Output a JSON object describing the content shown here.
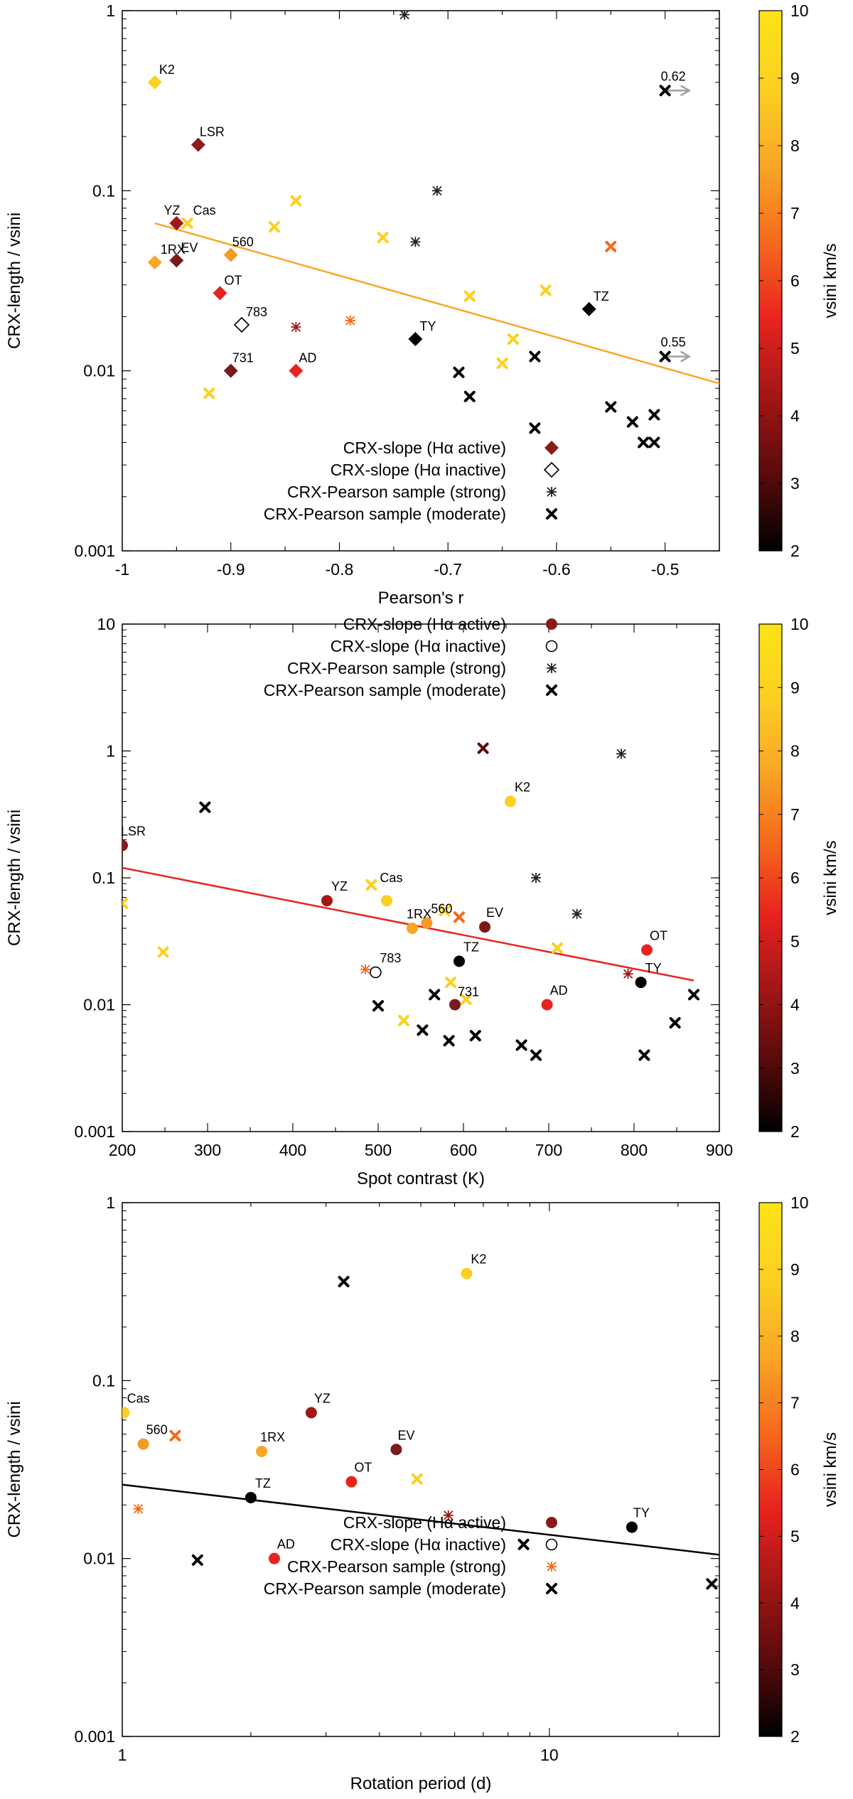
{
  "colorbar": {
    "label": "vsini km/s",
    "min": 2,
    "max": 10,
    "ticks": [
      "2",
      "3",
      "4",
      "5",
      "6",
      "7",
      "8",
      "9",
      "10"
    ],
    "stops": [
      "#000000",
      "#5a0b0b",
      "#a31616",
      "#e8231f",
      "#f56a1d",
      "#f9a726",
      "#fbd022",
      "#fde316"
    ]
  },
  "legend": {
    "active": "CRX-slope (Hα active)",
    "inactive": "CRX-slope (Hα inactive)",
    "strong": "CRX-Pearson sample (strong)",
    "moderate": "CRX-Pearson sample (moderate)"
  },
  "chart_data": [
    {
      "type": "scatter",
      "xlabel": "Pearson's r",
      "ylabel": "CRX-length / vsini",
      "xscale": "linear",
      "yscale": "log",
      "xlim": [
        -1,
        -0.45
      ],
      "ylim": [
        0.001,
        1
      ],
      "xticks": [
        {
          "v": -1,
          "t": "-1"
        },
        {
          "v": -0.9,
          "t": "-0.9"
        },
        {
          "v": -0.8,
          "t": "-0.8"
        },
        {
          "v": -0.7,
          "t": "-0.7"
        },
        {
          "v": -0.6,
          "t": "-0.6"
        },
        {
          "v": -0.5,
          "t": "-0.5"
        }
      ],
      "yticks": [
        {
          "v": 0.001,
          "t": "0.001"
        },
        {
          "v": 0.01,
          "t": "0.01"
        },
        {
          "v": 0.1,
          "t": "0.1"
        },
        {
          "v": 1,
          "t": "1"
        }
      ],
      "legend_position": "bottom-center",
      "fit": {
        "color": "#f9a726",
        "x": [
          -0.97,
          -0.45
        ],
        "y": [
          0.066,
          0.0085
        ]
      },
      "points": [
        {
          "m": "diamond",
          "x": -0.97,
          "y": 0.4,
          "c": "#fbd022",
          "label": "K2",
          "dx": 6,
          "dy": -12
        },
        {
          "m": "diamond",
          "x": -0.93,
          "y": 0.18,
          "c": "#8b1a1a",
          "label": "LSR",
          "dx": 2,
          "dy": -12
        },
        {
          "m": "diamond",
          "x": -0.95,
          "y": 0.066,
          "c": "#a31616",
          "label": "YZ",
          "dx": -18,
          "dy": -12
        },
        {
          "m": "x",
          "x": -0.94,
          "y": 0.066,
          "c": "#fbd022",
          "label": "Cas",
          "dx": 8,
          "dy": -12
        },
        {
          "m": "diamond",
          "x": -0.97,
          "y": 0.04,
          "c": "#f9a726",
          "label": "1RX",
          "dx": 8,
          "dy": -12
        },
        {
          "m": "diamond",
          "x": -0.95,
          "y": 0.041,
          "c": "#7a1a1a",
          "label": "EV",
          "dx": 6,
          "dy": -12
        },
        {
          "m": "diamond",
          "x": -0.9,
          "y": 0.044,
          "c": "#f59a26",
          "label": "560",
          "dx": 2,
          "dy": -12
        },
        {
          "m": "diamond",
          "x": -0.91,
          "y": 0.027,
          "c": "#e8231f",
          "label": "OT",
          "dx": 6,
          "dy": -12
        },
        {
          "m": "diamond-open",
          "x": -0.89,
          "y": 0.018,
          "c": "#000000",
          "label": "783",
          "dx": 6,
          "dy": -12
        },
        {
          "m": "diamond",
          "x": -0.9,
          "y": 0.01,
          "c": "#7a1a1a",
          "label": "731",
          "dx": 2,
          "dy": -12
        },
        {
          "m": "diamond",
          "x": -0.84,
          "y": 0.01,
          "c": "#e8231f",
          "label": "AD",
          "dx": 4,
          "dy": -12
        },
        {
          "m": "diamond",
          "x": -0.73,
          "y": 0.015,
          "c": "#000000",
          "label": "TY",
          "dx": 6,
          "dy": -12
        },
        {
          "m": "diamond",
          "x": -0.57,
          "y": 0.022,
          "c": "#000000",
          "label": "TZ",
          "dx": 6,
          "dy": -12
        },
        {
          "m": "x",
          "x": -0.92,
          "y": 0.0075,
          "c": "#fbd022"
        },
        {
          "m": "x",
          "x": -0.86,
          "y": 0.063,
          "c": "#fbd022"
        },
        {
          "m": "x",
          "x": -0.84,
          "y": 0.088,
          "c": "#fbd022"
        },
        {
          "m": "star",
          "x": -0.84,
          "y": 0.0175,
          "c": "#a31616"
        },
        {
          "m": "star",
          "x": -0.79,
          "y": 0.019,
          "c": "#f56a1d"
        },
        {
          "m": "x",
          "x": -0.76,
          "y": 0.055,
          "c": "#fbd022"
        },
        {
          "m": "star",
          "x": -0.74,
          "y": 0.95,
          "c": "#222222"
        },
        {
          "m": "star",
          "x": -0.73,
          "y": 0.052,
          "c": "#222222"
        },
        {
          "m": "star",
          "x": -0.71,
          "y": 0.1,
          "c": "#222222"
        },
        {
          "m": "x",
          "x": -0.69,
          "y": 0.0098,
          "c": "#000000"
        },
        {
          "m": "x",
          "x": -0.68,
          "y": 0.0072,
          "c": "#000000"
        },
        {
          "m": "x",
          "x": -0.68,
          "y": 0.026,
          "c": "#fbd022"
        },
        {
          "m": "x",
          "x": -0.65,
          "y": 0.011,
          "c": "#fbd022"
        },
        {
          "m": "x",
          "x": -0.64,
          "y": 0.015,
          "c": "#fbd022"
        },
        {
          "m": "x",
          "x": -0.62,
          "y": 0.012,
          "c": "#000000"
        },
        {
          "m": "x",
          "x": -0.62,
          "y": 0.0048,
          "c": "#000000"
        },
        {
          "m": "x",
          "x": -0.61,
          "y": 0.028,
          "c": "#fbd022"
        },
        {
          "m": "x",
          "x": -0.55,
          "y": 0.049,
          "c": "#f56a1d"
        },
        {
          "m": "x",
          "x": -0.55,
          "y": 0.0063,
          "c": "#000000"
        },
        {
          "m": "x",
          "x": -0.53,
          "y": 0.0052,
          "c": "#000000"
        },
        {
          "m": "x",
          "x": -0.52,
          "y": 0.004,
          "c": "#000000"
        },
        {
          "m": "x",
          "x": -0.51,
          "y": 0.004,
          "c": "#000000"
        },
        {
          "m": "x",
          "x": -0.51,
          "y": 0.0057,
          "c": "#000000"
        },
        {
          "m": "x",
          "x": -0.5,
          "y": 0.36,
          "c": "#000000",
          "arrow": true,
          "label": "0.62",
          "dx": -6,
          "dy": -14
        },
        {
          "m": "x",
          "x": -0.5,
          "y": 0.012,
          "c": "#000000",
          "arrow": true,
          "label": "0.55",
          "dx": -6,
          "dy": -14
        }
      ]
    },
    {
      "type": "scatter",
      "xlabel": "Spot contrast (K)",
      "ylabel": "CRX-length / vsini",
      "xscale": "linear",
      "yscale": "log",
      "xlim": [
        200,
        900
      ],
      "ylim": [
        0.001,
        10
      ],
      "xticks": [
        {
          "v": 200,
          "t": "200"
        },
        {
          "v": 300,
          "t": "300"
        },
        {
          "v": 400,
          "t": "400"
        },
        {
          "v": 500,
          "t": "500"
        },
        {
          "v": 600,
          "t": "600"
        },
        {
          "v": 700,
          "t": "700"
        },
        {
          "v": 800,
          "t": "800"
        },
        {
          "v": 900,
          "t": "900"
        }
      ],
      "yticks": [
        {
          "v": 0.001,
          "t": "0.001"
        },
        {
          "v": 0.01,
          "t": "0.01"
        },
        {
          "v": 0.1,
          "t": "0.1"
        },
        {
          "v": 1,
          "t": "1"
        },
        {
          "v": 10,
          "t": "10"
        }
      ],
      "legend_position": "top-center",
      "fit": {
        "color": "#e8231f",
        "x": [
          200,
          870
        ],
        "y": [
          0.12,
          0.0155
        ]
      },
      "points": [
        {
          "m": "circle",
          "x": 200,
          "y": 0.18,
          "c": "#8b1a1a",
          "label": "LSR",
          "dx": -2,
          "dy": -14
        },
        {
          "m": "x",
          "x": 200,
          "y": 0.063,
          "c": "#fbd022"
        },
        {
          "m": "x",
          "x": 248,
          "y": 0.026,
          "c": "#fbd022"
        },
        {
          "m": "x",
          "x": 297,
          "y": 0.36,
          "c": "#000000"
        },
        {
          "m": "circle",
          "x": 440,
          "y": 0.066,
          "c": "#a31616",
          "label": "YZ",
          "dx": 6,
          "dy": -14
        },
        {
          "m": "x",
          "x": 492,
          "y": 0.088,
          "c": "#fbd022",
          "label": "Cas",
          "dx": 12,
          "dy": -4
        },
        {
          "m": "circle",
          "x": 510,
          "y": 0.066,
          "c": "#fbd022"
        },
        {
          "m": "circle",
          "x": 540,
          "y": 0.04,
          "c": "#f9a726",
          "label": "1RX",
          "dx": -8,
          "dy": -14
        },
        {
          "m": "circle",
          "x": 557,
          "y": 0.044,
          "c": "#f59a26",
          "label": "560",
          "dx": 6,
          "dy": -14
        },
        {
          "m": "x",
          "x": 578,
          "y": 0.055,
          "c": "#fbd022"
        },
        {
          "m": "x",
          "x": 595,
          "y": 0.049,
          "c": "#f56a1d"
        },
        {
          "m": "circle",
          "x": 625,
          "y": 0.041,
          "c": "#7a1a1a",
          "label": "EV",
          "dx": 2,
          "dy": -14
        },
        {
          "m": "circle-open",
          "x": 497,
          "y": 0.018,
          "c": "#000000",
          "label": "783",
          "dx": 6,
          "dy": -14
        },
        {
          "m": "star",
          "x": 485,
          "y": 0.019,
          "c": "#f56a1d"
        },
        {
          "m": "circle",
          "x": 595,
          "y": 0.022,
          "c": "#000000",
          "label": "TZ",
          "dx": 6,
          "dy": -14
        },
        {
          "m": "x",
          "x": 585,
          "y": 0.015,
          "c": "#fbd022"
        },
        {
          "m": "x",
          "x": 603,
          "y": 0.011,
          "c": "#fbd022"
        },
        {
          "m": "circle",
          "x": 590,
          "y": 0.01,
          "c": "#7a1a1a",
          "label": "731",
          "dx": 4,
          "dy": -12
        },
        {
          "m": "circle",
          "x": 698,
          "y": 0.01,
          "c": "#e8231f",
          "label": "AD",
          "dx": 4,
          "dy": -14
        },
        {
          "m": "x",
          "x": 710,
          "y": 0.028,
          "c": "#fbd022"
        },
        {
          "m": "x",
          "x": 500,
          "y": 0.0098,
          "c": "#000000"
        },
        {
          "m": "x",
          "x": 530,
          "y": 0.0075,
          "c": "#fbd022"
        },
        {
          "m": "x",
          "x": 552,
          "y": 0.0063,
          "c": "#000000"
        },
        {
          "m": "x",
          "x": 566,
          "y": 0.012,
          "c": "#000000"
        },
        {
          "m": "x",
          "x": 583,
          "y": 0.0052,
          "c": "#000000"
        },
        {
          "m": "x",
          "x": 614,
          "y": 0.0057,
          "c": "#000000"
        },
        {
          "m": "x",
          "x": 668,
          "y": 0.0048,
          "c": "#000000"
        },
        {
          "m": "x",
          "x": 685,
          "y": 0.004,
          "c": "#000000"
        },
        {
          "m": "x",
          "x": 623,
          "y": 1.05,
          "c": "#5a0b0b"
        },
        {
          "m": "circle",
          "x": 655,
          "y": 0.4,
          "c": "#fbd022",
          "label": "K2",
          "dx": 6,
          "dy": -14
        },
        {
          "m": "star",
          "x": 785,
          "y": 0.95,
          "c": "#222222"
        },
        {
          "m": "star",
          "x": 685,
          "y": 0.1,
          "c": "#222222"
        },
        {
          "m": "star",
          "x": 733,
          "y": 0.052,
          "c": "#222222"
        },
        {
          "m": "circle",
          "x": 815,
          "y": 0.027,
          "c": "#e8231f",
          "label": "OT",
          "dx": 4,
          "dy": -14
        },
        {
          "m": "star",
          "x": 793,
          "y": 0.0175,
          "c": "#a31616"
        },
        {
          "m": "circle",
          "x": 808,
          "y": 0.015,
          "c": "#000000",
          "label": "TY",
          "dx": 6,
          "dy": -14
        },
        {
          "m": "x",
          "x": 870,
          "y": 0.012,
          "c": "#000000"
        },
        {
          "m": "x",
          "x": 848,
          "y": 0.0072,
          "c": "#000000"
        },
        {
          "m": "x",
          "x": 812,
          "y": 0.004,
          "c": "#000000"
        }
      ]
    },
    {
      "type": "scatter",
      "xlabel": "Rotation period (d)",
      "ylabel": "CRX-length / vsini",
      "xscale": "log",
      "yscale": "log",
      "xlim": [
        1,
        25
      ],
      "ylim": [
        0.001,
        1
      ],
      "xticks": [
        {
          "v": 1,
          "t": "1"
        },
        {
          "v": 10,
          "t": "10"
        }
      ],
      "yticks": [
        {
          "v": 0.001,
          "t": "0.001"
        },
        {
          "v": 0.01,
          "t": "0.01"
        },
        {
          "v": 0.1,
          "t": "0.1"
        },
        {
          "v": 1,
          "t": "1"
        }
      ],
      "legend_position": "bottom-center",
      "fit": {
        "color": "#000000",
        "x": [
          1,
          25
        ],
        "y": [
          0.026,
          0.0105
        ]
      },
      "points": [
        {
          "m": "circle",
          "x": 1.01,
          "y": 0.066,
          "c": "#fbd022",
          "label": "Cas",
          "dx": 4,
          "dy": -14
        },
        {
          "m": "circle",
          "x": 1.12,
          "y": 0.044,
          "c": "#f59a26",
          "label": "560",
          "dx": 4,
          "dy": -14
        },
        {
          "m": "x",
          "x": 1.33,
          "y": 0.049,
          "c": "#f56a1d"
        },
        {
          "m": "star",
          "x": 1.09,
          "y": 0.019,
          "c": "#f56a1d"
        },
        {
          "m": "x",
          "x": 1.5,
          "y": 0.0098,
          "c": "#000000"
        },
        {
          "m": "circle",
          "x": 2.0,
          "y": 0.022,
          "c": "#000000",
          "label": "TZ",
          "dx": 6,
          "dy": -14
        },
        {
          "m": "circle",
          "x": 2.12,
          "y": 0.04,
          "c": "#f9a726",
          "label": "1RX",
          "dx": -2,
          "dy": -14
        },
        {
          "m": "circle",
          "x": 2.27,
          "y": 0.01,
          "c": "#e8231f",
          "label": "AD",
          "dx": 4,
          "dy": -14
        },
        {
          "m": "circle",
          "x": 2.77,
          "y": 0.066,
          "c": "#a31616",
          "label": "YZ",
          "dx": 4,
          "dy": -14
        },
        {
          "m": "x",
          "x": 3.3,
          "y": 0.36,
          "c": "#000000"
        },
        {
          "m": "circle",
          "x": 3.44,
          "y": 0.027,
          "c": "#e8231f",
          "label": "OT",
          "dx": 4,
          "dy": -14
        },
        {
          "m": "circle",
          "x": 4.38,
          "y": 0.041,
          "c": "#7a1a1a",
          "label": "EV",
          "dx": 2,
          "dy": -14
        },
        {
          "m": "x",
          "x": 4.9,
          "y": 0.028,
          "c": "#fbd022"
        },
        {
          "m": "star",
          "x": 5.8,
          "y": 0.0175,
          "c": "#a31616"
        },
        {
          "m": "circle",
          "x": 6.4,
          "y": 0.4,
          "c": "#fbd022",
          "label": "K2",
          "dx": 6,
          "dy": -14
        },
        {
          "m": "x",
          "x": 8.7,
          "y": 0.012,
          "c": "#000000"
        },
        {
          "m": "circle",
          "x": 15.6,
          "y": 0.015,
          "c": "#000000",
          "label": "TY",
          "dx": 2,
          "dy": -14
        },
        {
          "m": "x",
          "x": 24,
          "y": 0.0072,
          "c": "#000000"
        }
      ]
    }
  ]
}
